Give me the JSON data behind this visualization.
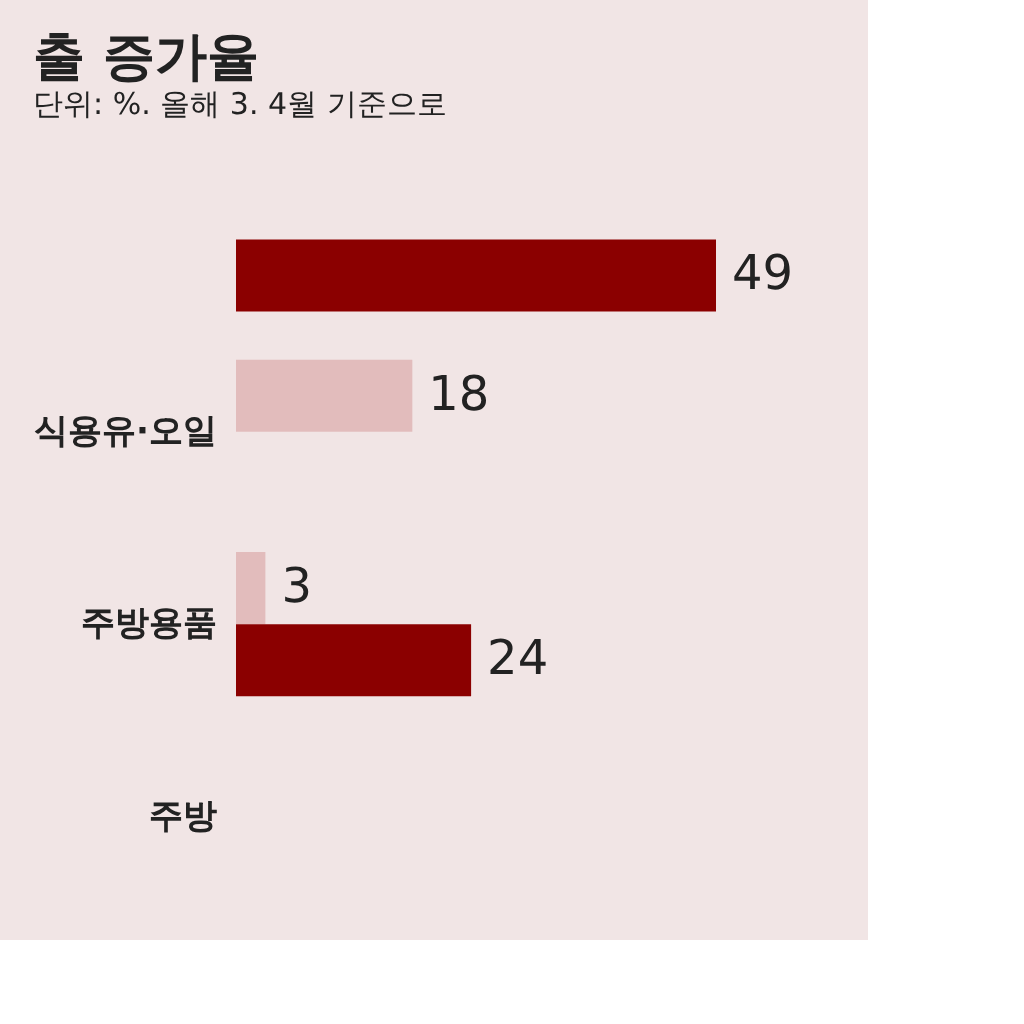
{
  "chart_data": {
    "type": "bar",
    "orientation": "horizontal",
    "title": "출 증가율",
    "subtitle": "단위: %. 올해 3. 4월 기준으로",
    "categories": [
      null,
      "식용유·오일",
      "주방용품",
      "주방"
    ],
    "series": [
      {
        "color": "#e2bcbc",
        "values": [
          null,
          18,
          3,
          null
        ]
      },
      {
        "color": "#8b0000",
        "values": [
          49,
          null,
          24,
          null
        ]
      }
    ],
    "data_labels": true
  }
}
